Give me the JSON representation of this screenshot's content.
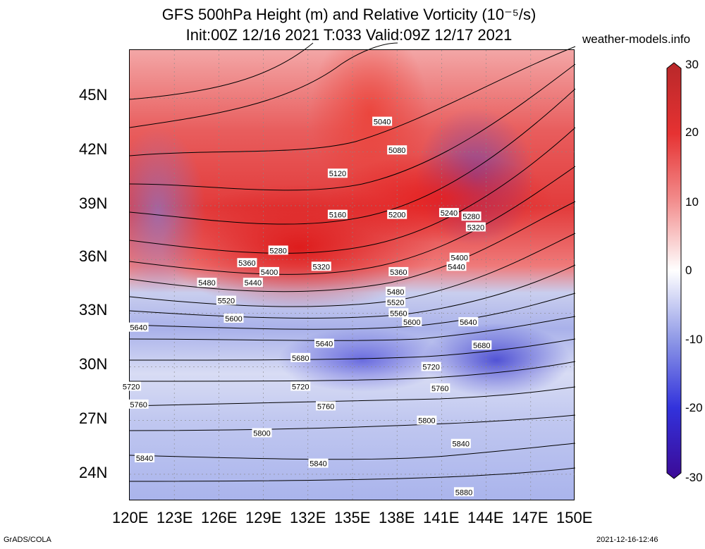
{
  "title": {
    "line1": "GFS 500hPa Height (m) and Relative Vorticity (10⁻⁵/s)",
    "line2": "Init:00Z 12/16 2021 T:033 Valid:09Z 12/17 2021"
  },
  "brand": "weather-models.info",
  "footer": {
    "left": "GrADS/COLA",
    "right": "2021-12-16-12:46"
  },
  "axes": {
    "lat_labels": [
      "45N",
      "42N",
      "39N",
      "36N",
      "33N",
      "30N",
      "27N",
      "24N"
    ],
    "lon_labels": [
      "120E",
      "123E",
      "126E",
      "129E",
      "132E",
      "135E",
      "138E",
      "141E",
      "144E",
      "147E",
      "150E"
    ]
  },
  "colorbar": {
    "labels": [
      "30",
      "20",
      "10",
      "0",
      "-10",
      "-20",
      "-30"
    ],
    "colors": [
      "#b8282a",
      "#e63232",
      "#f28c8c",
      "#ffffff",
      "#8c96e6",
      "#3232dc",
      "#3c0a96"
    ]
  },
  "contour_labels": [
    {
      "text": "5040",
      "lon": 137.0,
      "lat": 43.7
    },
    {
      "text": "5080",
      "lon": 138.0,
      "lat": 42.1
    },
    {
      "text": "5120",
      "lon": 134.0,
      "lat": 40.8
    },
    {
      "text": "5160",
      "lon": 134.0,
      "lat": 38.5
    },
    {
      "text": "5200",
      "lon": 138.0,
      "lat": 38.5
    },
    {
      "text": "5240",
      "lon": 141.5,
      "lat": 38.6
    },
    {
      "text": "5280",
      "lon": 143.0,
      "lat": 38.4
    },
    {
      "text": "5320",
      "lon": 143.3,
      "lat": 37.8
    },
    {
      "text": "5280",
      "lon": 130.0,
      "lat": 36.5
    },
    {
      "text": "5360",
      "lon": 127.9,
      "lat": 35.8
    },
    {
      "text": "5400",
      "lon": 129.4,
      "lat": 35.3
    },
    {
      "text": "5320",
      "lon": 132.9,
      "lat": 35.6
    },
    {
      "text": "5400",
      "lon": 142.2,
      "lat": 36.1
    },
    {
      "text": "5440",
      "lon": 142.0,
      "lat": 35.6
    },
    {
      "text": "5360",
      "lon": 138.1,
      "lat": 35.3
    },
    {
      "text": "5480",
      "lon": 125.2,
      "lat": 34.7
    },
    {
      "text": "5440",
      "lon": 128.3,
      "lat": 34.7
    },
    {
      "text": "5480",
      "lon": 137.9,
      "lat": 34.2
    },
    {
      "text": "5520",
      "lon": 126.5,
      "lat": 33.7
    },
    {
      "text": "5520",
      "lon": 137.9,
      "lat": 33.6
    },
    {
      "text": "5560",
      "lon": 138.1,
      "lat": 33.0
    },
    {
      "text": "5600",
      "lon": 127.0,
      "lat": 32.7
    },
    {
      "text": "5600",
      "lon": 139.0,
      "lat": 32.5
    },
    {
      "text": "5640",
      "lon": 120.6,
      "lat": 32.2
    },
    {
      "text": "5640",
      "lon": 142.8,
      "lat": 32.5
    },
    {
      "text": "5640",
      "lon": 133.1,
      "lat": 31.3
    },
    {
      "text": "5680",
      "lon": 143.7,
      "lat": 31.2
    },
    {
      "text": "5680",
      "lon": 131.5,
      "lat": 30.5
    },
    {
      "text": "5720",
      "lon": 140.3,
      "lat": 30.0
    },
    {
      "text": "5720",
      "lon": 120.1,
      "lat": 28.9
    },
    {
      "text": "5720",
      "lon": 131.5,
      "lat": 28.9
    },
    {
      "text": "5760",
      "lon": 140.9,
      "lat": 28.8
    },
    {
      "text": "5760",
      "lon": 120.6,
      "lat": 27.9
    },
    {
      "text": "5760",
      "lon": 133.2,
      "lat": 27.8
    },
    {
      "text": "5800",
      "lon": 128.9,
      "lat": 26.3
    },
    {
      "text": "5800",
      "lon": 140.0,
      "lat": 27.0
    },
    {
      "text": "5840",
      "lon": 142.3,
      "lat": 25.7
    },
    {
      "text": "5840",
      "lon": 121.0,
      "lat": 24.9
    },
    {
      "text": "5840",
      "lon": 132.7,
      "lat": 24.6
    },
    {
      "text": "5880",
      "lon": 142.5,
      "lat": 23.0
    }
  ]
}
